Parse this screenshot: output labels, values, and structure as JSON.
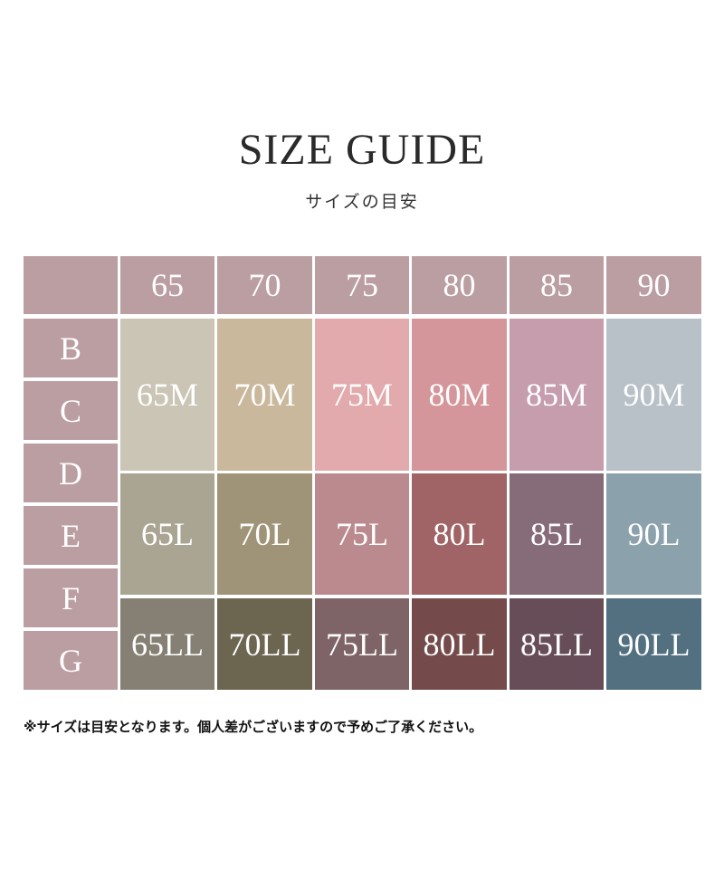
{
  "title": "SIZE GUIDE",
  "subtitle": "サイズの目安",
  "columns": [
    "65",
    "70",
    "75",
    "80",
    "85",
    "90"
  ],
  "rows": [
    "B",
    "C",
    "D",
    "E",
    "F",
    "G"
  ],
  "groups": [
    {
      "rows": "B-C",
      "sizes": [
        "65M",
        "70M",
        "75M",
        "80M",
        "85M",
        "90M"
      ],
      "colors": [
        "#cbc5b6",
        "#c9b89c",
        "#e2aaad",
        "#d4969a",
        "#c59dad",
        "#b8c1c8"
      ]
    },
    {
      "rows": "D-E-F",
      "sizes": [
        "65L",
        "70L",
        "75L",
        "80L",
        "85L",
        "90L"
      ],
      "colors": [
        "#aaa593",
        "#a09478",
        "#ba8a8e",
        "#a16466",
        "#866b78",
        "#8ba1ac"
      ]
    },
    {
      "rows": "F-G",
      "sizes": [
        "65LL",
        "70LL",
        "75LL",
        "80LL",
        "85LL",
        "90LL"
      ],
      "colors": [
        "#858073",
        "#6c6550",
        "#7e6466",
        "#744a4a",
        "#674d58",
        "#537080"
      ]
    }
  ],
  "header_color": "#bb9ea2",
  "note": "※サイズは目安となります。個人差がございますので予めご了承ください。"
}
